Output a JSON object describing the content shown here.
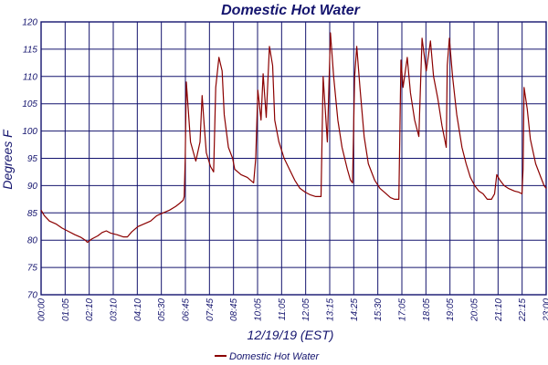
{
  "chart_data": {
    "type": "line",
    "title": "Domestic Hot Water",
    "xlabel": "12/19/19 (EST)",
    "ylabel": "Degrees F",
    "ylim": [
      70,
      120
    ],
    "yticks": [
      "70",
      "75",
      "80",
      "85",
      "90",
      "95",
      "100",
      "105",
      "110",
      "115",
      "120"
    ],
    "xticks": [
      "00:00",
      "01:05",
      "02:10",
      "03:10",
      "04:10",
      "05:30",
      "06:45",
      "07:45",
      "08:45",
      "10:05",
      "11:05",
      "12:05",
      "13:15",
      "14:25",
      "15:30",
      "17:05",
      "18:05",
      "19:05",
      "20:05",
      "21:10",
      "22:15",
      "23:00"
    ],
    "grid": true,
    "legend_position": "bottom-center",
    "series": [
      {
        "name": "Domestic Hot Water",
        "color": "#8b0000",
        "values": [
          [
            0.0,
            85.5
          ],
          [
            0.15,
            84.5
          ],
          [
            0.4,
            83.5
          ],
          [
            0.7,
            83.0
          ],
          [
            1.0,
            82.2
          ],
          [
            1.3,
            81.6
          ],
          [
            1.6,
            81.0
          ],
          [
            1.9,
            80.5
          ],
          [
            2.1,
            80.0
          ],
          [
            2.2,
            79.6
          ],
          [
            2.4,
            80.2
          ],
          [
            2.7,
            80.8
          ],
          [
            2.9,
            81.4
          ],
          [
            3.1,
            81.7
          ],
          [
            3.3,
            81.3
          ],
          [
            3.6,
            81.0
          ],
          [
            3.9,
            80.6
          ],
          [
            4.1,
            80.6
          ],
          [
            4.3,
            81.5
          ],
          [
            4.6,
            82.5
          ],
          [
            4.9,
            83.0
          ],
          [
            5.2,
            83.5
          ],
          [
            5.5,
            84.5
          ],
          [
            5.8,
            85.0
          ],
          [
            6.1,
            85.5
          ],
          [
            6.4,
            86.2
          ],
          [
            6.6,
            86.8
          ],
          [
            6.75,
            87.3
          ],
          [
            6.8,
            88.0
          ],
          [
            6.85,
            95.0
          ],
          [
            6.9,
            109.0
          ],
          [
            7.1,
            98.0
          ],
          [
            7.35,
            94.5
          ],
          [
            7.55,
            98.0
          ],
          [
            7.65,
            106.5
          ],
          [
            7.75,
            101.0
          ],
          [
            7.85,
            96.0
          ],
          [
            8.05,
            93.5
          ],
          [
            8.2,
            92.5
          ],
          [
            8.3,
            108.0
          ],
          [
            8.45,
            113.5
          ],
          [
            8.6,
            111.0
          ],
          [
            8.7,
            103.0
          ],
          [
            8.9,
            97.0
          ],
          [
            9.1,
            95.0
          ],
          [
            9.2,
            93.0
          ],
          [
            9.5,
            92.0
          ],
          [
            9.8,
            91.5
          ],
          [
            10.1,
            90.5
          ],
          [
            10.2,
            95.0
          ],
          [
            10.3,
            107.5
          ],
          [
            10.45,
            102.0
          ],
          [
            10.55,
            110.5
          ],
          [
            10.7,
            102.5
          ],
          [
            10.85,
            115.5
          ],
          [
            11.0,
            112.0
          ],
          [
            11.1,
            102.0
          ],
          [
            11.3,
            98.0
          ],
          [
            11.55,
            95.0
          ],
          [
            11.8,
            93.0
          ],
          [
            12.05,
            91.0
          ],
          [
            12.3,
            89.5
          ],
          [
            12.55,
            88.8
          ],
          [
            12.8,
            88.3
          ],
          [
            13.05,
            88.0
          ],
          [
            13.3,
            88.0
          ],
          [
            13.4,
            110.0
          ],
          [
            13.5,
            104.0
          ],
          [
            13.6,
            98.0
          ],
          [
            13.75,
            118.0
          ],
          [
            13.9,
            110.0
          ],
          [
            14.1,
            102.0
          ],
          [
            14.3,
            97.0
          ],
          [
            14.55,
            93.0
          ],
          [
            14.7,
            91.0
          ],
          [
            14.8,
            90.5
          ],
          [
            14.9,
            110.0
          ],
          [
            15.0,
            115.5
          ],
          [
            15.15,
            108.0
          ],
          [
            15.35,
            99.0
          ],
          [
            15.55,
            94.0
          ],
          [
            15.85,
            91.0
          ],
          [
            16.1,
            89.5
          ],
          [
            16.4,
            88.5
          ],
          [
            16.6,
            87.8
          ],
          [
            16.8,
            87.5
          ],
          [
            17.0,
            87.5
          ],
          [
            17.1,
            113.0
          ],
          [
            17.2,
            108.0
          ],
          [
            17.4,
            113.5
          ],
          [
            17.55,
            107.0
          ],
          [
            17.75,
            102.0
          ],
          [
            17.95,
            99.0
          ],
          [
            18.1,
            117.0
          ],
          [
            18.3,
            111.0
          ],
          [
            18.5,
            116.5
          ],
          [
            18.65,
            110.0
          ],
          [
            18.85,
            106.0
          ],
          [
            19.05,
            101.0
          ],
          [
            19.25,
            97.0
          ],
          [
            19.3,
            112.0
          ],
          [
            19.4,
            117.0
          ],
          [
            19.55,
            110.0
          ],
          [
            19.75,
            103.0
          ],
          [
            20.0,
            97.0
          ],
          [
            20.2,
            94.0
          ],
          [
            20.4,
            91.5
          ],
          [
            20.6,
            90.0
          ],
          [
            20.8,
            89.0
          ],
          [
            21.0,
            88.5
          ],
          [
            21.2,
            87.5
          ],
          [
            21.4,
            87.5
          ],
          [
            21.55,
            88.5
          ],
          [
            21.65,
            92.0
          ],
          [
            21.8,
            91.0
          ],
          [
            22.0,
            90.0
          ],
          [
            22.2,
            89.5
          ],
          [
            22.5,
            89.0
          ],
          [
            22.7,
            88.8
          ],
          [
            22.85,
            88.5
          ],
          [
            22.9,
            93.0
          ],
          [
            22.95,
            108.0
          ],
          [
            23.1,
            104.0
          ],
          [
            23.25,
            98.5
          ],
          [
            23.5,
            94.0
          ],
          [
            23.75,
            91.5
          ],
          [
            23.9,
            90.0
          ],
          [
            24.0,
            89.5
          ]
        ]
      }
    ]
  }
}
